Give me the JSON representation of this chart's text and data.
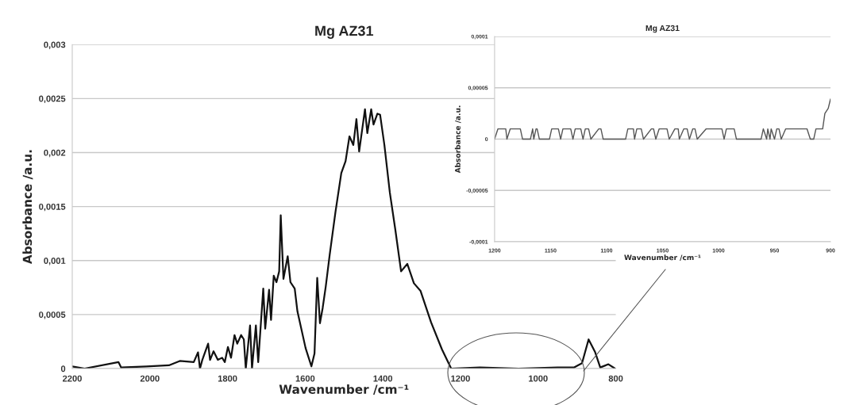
{
  "chart_data": [
    {
      "type": "line",
      "title": "Mg AZ31",
      "xlabel": "Wavenumber /cm⁻¹",
      "ylabel": "Absorbance /a.u.",
      "grid": "y",
      "marker": "none",
      "line_style": "solid",
      "xlim": [
        2200,
        800
      ],
      "xticks": [
        2200,
        2000,
        1800,
        1600,
        1400,
        1200,
        1000,
        800
      ],
      "ylim": [
        0,
        0.003
      ],
      "yticks": [
        {
          "value": 0,
          "label": "0"
        },
        {
          "value": 0.0005,
          "label": "0,0005"
        },
        {
          "value": 0.001,
          "label": "0,001"
        },
        {
          "value": 0.0015,
          "label": "0,0015"
        },
        {
          "value": 0.002,
          "label": "0,002"
        },
        {
          "value": 0.0025,
          "label": "0,0025"
        },
        {
          "value": 0.003,
          "label": "0,003"
        }
      ],
      "series": [
        {
          "color": "#111111",
          "x": [
            2200,
            2168,
            2081,
            2074,
            2009,
            1951,
            1923,
            1887,
            1876,
            1871,
            1865,
            1850,
            1845,
            1836,
            1825,
            1814,
            1807,
            1799,
            1791,
            1782,
            1775,
            1765,
            1758,
            1753,
            1742,
            1737,
            1727,
            1721,
            1708,
            1703,
            1693,
            1688,
            1681,
            1674,
            1667,
            1663,
            1656,
            1645,
            1638,
            1627,
            1620,
            1599,
            1584,
            1576,
            1569,
            1562,
            1555,
            1547,
            1537,
            1522,
            1507,
            1496,
            1486,
            1476,
            1468,
            1461,
            1446,
            1440,
            1430,
            1424,
            1414,
            1407,
            1396,
            1382,
            1368,
            1353,
            1337,
            1320,
            1303,
            1276,
            1248,
            1224,
            1150,
            1050,
            950,
            908,
            887,
            870,
            853,
            840,
            819,
            802
          ],
          "values": [
            2e-05,
            0,
            6e-05,
            1e-05,
            2e-05,
            3e-05,
            7e-05,
            6e-05,
            0.00015,
            0,
            8e-05,
            0.00023,
            8e-05,
            0.00016,
            8e-05,
            0.0001,
            6e-05,
            0.0002,
            0.0001,
            0.00031,
            0.00023,
            0.00031,
            0.00027,
            0,
            0.0004,
            0,
            0.0004,
            6e-05,
            0.00074,
            0.00037,
            0.00073,
            0.00045,
            0.00086,
            0.0008,
            0.0009,
            0.00142,
            0.00083,
            0.00104,
            0.0008,
            0.00074,
            0.00053,
            0.00019,
            2e-05,
            0.00014,
            0.00084,
            0.00042,
            0.00056,
            0.00076,
            0.00105,
            0.00145,
            0.00181,
            0.00192,
            0.00215,
            0.00207,
            0.00231,
            0.00201,
            0.0024,
            0.00218,
            0.0024,
            0.00226,
            0.00236,
            0.00235,
            0.00207,
            0.00163,
            0.00129,
            0.0009,
            0.00097,
            0.00079,
            0.00072,
            0.00043,
            0.00018,
            0,
            1e-05,
            0,
            1e-05,
            1e-05,
            5e-05,
            0.00027,
            0.00015,
            1e-05,
            4e-05,
            0
          ]
        }
      ]
    },
    {
      "type": "line",
      "title": "Mg AZ31",
      "xlabel": "Wavenumber /cm⁻¹",
      "ylabel": "Absorbance /a.u.",
      "grid": "y",
      "marker": "none",
      "line_style": "solid",
      "xlim": [
        1200,
        900
      ],
      "xticks": [
        1200,
        1150,
        1100,
        1050,
        1000,
        950,
        900
      ],
      "ylim": [
        -0.0001,
        0.0001
      ],
      "yticks": [
        {
          "value": -0.0001,
          "label": "-0,0001"
        },
        {
          "value": -5e-05,
          "label": "-0,00005"
        },
        {
          "value": 0,
          "label": "0"
        },
        {
          "value": 5e-05,
          "label": "0,00005"
        },
        {
          "value": 0.0001,
          "label": "0,0001"
        }
      ],
      "series": [
        {
          "color": "#555555",
          "x": [
            1200,
            1197,
            1190,
            1189,
            1186,
            1177,
            1175,
            1168,
            1166,
            1165,
            1163,
            1162,
            1160,
            1151,
            1149,
            1143,
            1141,
            1139,
            1132,
            1130,
            1128,
            1123,
            1121,
            1119,
            1116,
            1114,
            1107,
            1105,
            1103,
            1083,
            1081,
            1076,
            1075,
            1073,
            1069,
            1067,
            1060,
            1058,
            1056,
            1053,
            1046,
            1044,
            1039,
            1036,
            1035,
            1031,
            1028,
            1026,
            1023,
            1021,
            1019,
            1011,
            997,
            995,
            993,
            986,
            984,
            962,
            960,
            957,
            956,
            954,
            953,
            950,
            948,
            946,
            944,
            940,
            921,
            918,
            915,
            913,
            907,
            905,
            902,
            900
          ],
          "values": [
            0,
            1e-05,
            1e-05,
            0,
            1e-05,
            1e-05,
            0,
            0,
            1e-05,
            0,
            1e-05,
            1e-05,
            0,
            0,
            1e-05,
            1e-05,
            0,
            1e-05,
            1e-05,
            0,
            1e-05,
            1e-05,
            0,
            1e-05,
            1e-05,
            0,
            1e-05,
            1e-05,
            0,
            0,
            1e-05,
            1e-05,
            0,
            1e-05,
            1e-05,
            0,
            1e-05,
            1e-05,
            0,
            1e-05,
            1e-05,
            0,
            1e-05,
            1e-05,
            0,
            1e-05,
            1e-05,
            0,
            1e-05,
            1e-05,
            0,
            1e-05,
            1e-05,
            0,
            1e-05,
            1e-05,
            0,
            0,
            1e-05,
            0,
            1e-05,
            0,
            1e-05,
            0,
            1e-05,
            1e-05,
            0,
            1e-05,
            1e-05,
            0,
            0,
            1e-05,
            1e-05,
            2.5e-05,
            3e-05,
            3.9e-05
          ]
        }
      ]
    }
  ]
}
